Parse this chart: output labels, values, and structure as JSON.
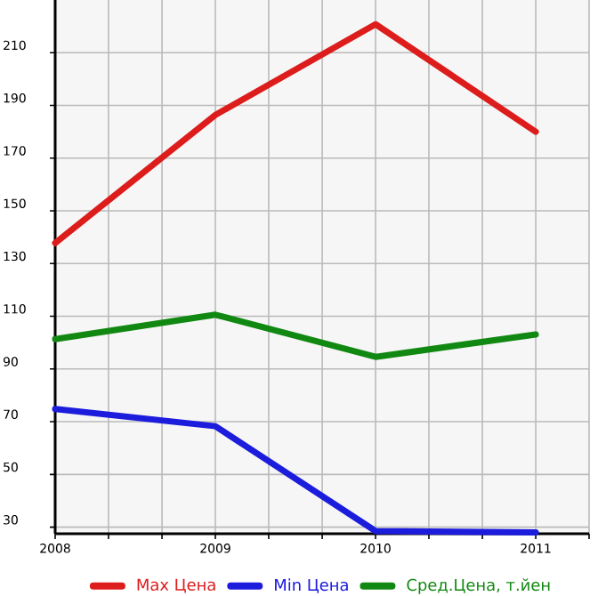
{
  "chart_data": {
    "type": "line",
    "x": [
      2008,
      2009,
      2010,
      2011
    ],
    "series": [
      {
        "name": "Max Цена",
        "color": "#dd1c1c",
        "values": [
          137.8,
          186.4,
          220.8,
          180
        ]
      },
      {
        "name": "Min Цена",
        "color": "#1c1cdd",
        "values": [
          74.8,
          68.3,
          28.5,
          28
        ]
      },
      {
        "name": "Сред.Цена, т.йен",
        "color": "#118811",
        "values": [
          101.3,
          110.6,
          94.6,
          103.1
        ]
      }
    ],
    "xlim": [
      2008,
      2011.333
    ],
    "xticks": [
      2008,
      {
        "value": 2008.333,
        "label": null
      },
      {
        "value": 2008.667,
        "label": null
      },
      2009,
      {
        "value": 2009.333,
        "label": null
      },
      {
        "value": 2009.667,
        "label": null
      },
      2010,
      {
        "value": 2010.333,
        "label": null
      },
      {
        "value": 2010.667,
        "label": null
      },
      2011,
      {
        "value": 2011.333,
        "label": null
      }
    ],
    "ylim": [
      27.5,
      230
    ],
    "yticks": [
      30,
      50,
      70,
      90,
      110,
      130,
      150,
      170,
      190,
      210
    ],
    "grid": true,
    "legend": "bottom",
    "marker": "none",
    "line_style": "solid"
  }
}
